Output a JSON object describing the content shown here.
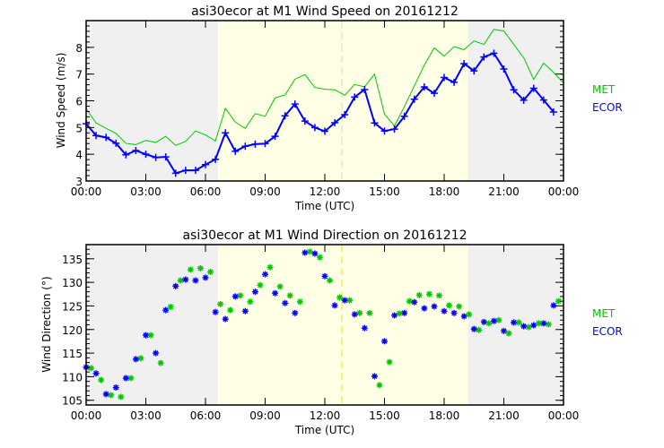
{
  "colors": {
    "met": "#00c800",
    "ecor": "#0000ff",
    "night": "#f0f0f0",
    "day": "#ffffe6"
  },
  "chart_data": [
    {
      "type": "line",
      "title": "asi30ecor at M1 Wind Speed on 20161212",
      "xlabel": "Time (UTC)",
      "ylabel": "Wind Speed (m/s)",
      "xlim": [
        0,
        24
      ],
      "ylim": [
        3,
        9
      ],
      "xticks": [
        "00:00",
        "03:00",
        "06:00",
        "09:00",
        "12:00",
        "15:00",
        "18:00",
        "21:00",
        "00:00"
      ],
      "yticks": [
        3,
        4,
        5,
        6,
        7,
        8
      ],
      "shading": {
        "night_end": 6.63,
        "day_end": 19.2,
        "marker_line": 12.86
      },
      "legend": [
        "MET",
        "ECOR"
      ],
      "legend_position": "right",
      "series": [
        {
          "name": "MET",
          "x_start": 0,
          "x_step": 0.5,
          "values": [
            5.7,
            5.17,
            4.97,
            4.78,
            4.41,
            4.36,
            4.52,
            4.44,
            4.67,
            4.33,
            4.48,
            4.87,
            4.72,
            4.5,
            5.72,
            5.2,
            4.97,
            5.52,
            5.42,
            6.11,
            6.22,
            6.81,
            6.98,
            6.5,
            6.43,
            6.41,
            6.21,
            6.61,
            6.52,
            7.0,
            5.5,
            5.06,
            5.78,
            6.56,
            7.33,
            7.98,
            7.67,
            8.03,
            7.91,
            8.24,
            8.11,
            8.67,
            8.61,
            8.11,
            7.61,
            6.8,
            7.41,
            7.06,
            6.67
          ]
        },
        {
          "name": "ECOR",
          "x_start": 0,
          "x_step": 0.5,
          "values": [
            5.14,
            4.7,
            4.63,
            4.41,
            3.98,
            4.14,
            4.0,
            3.88,
            3.9,
            3.29,
            3.4,
            3.4,
            3.61,
            3.81,
            4.8,
            4.11,
            4.3,
            4.38,
            4.4,
            4.67,
            5.44,
            5.88,
            5.24,
            5.0,
            4.86,
            5.18,
            5.48,
            6.14,
            6.42,
            5.17,
            4.87,
            4.94,
            5.42,
            6.06,
            6.52,
            6.28,
            6.87,
            6.69,
            7.39,
            7.12,
            7.64,
            7.78,
            7.19,
            6.41,
            6.02,
            6.47,
            6.03,
            5.58
          ]
        }
      ]
    },
    {
      "type": "scatter",
      "title": "asi30ecor at M1 Wind Direction on 20161212",
      "xlabel": "Time (UTC)",
      "ylabel": "Wind Direction (°)",
      "xlim": [
        0,
        24
      ],
      "ylim": [
        104,
        138
      ],
      "xticks": [
        "00:00",
        "03:00",
        "06:00",
        "09:00",
        "12:00",
        "15:00",
        "18:00",
        "21:00",
        "00:00"
      ],
      "yticks": [
        105,
        110,
        115,
        120,
        125,
        130,
        135
      ],
      "shading": {
        "night_end": 6.63,
        "day_end": 19.2,
        "marker_line": 12.86
      },
      "legend": [
        "MET",
        "ECOR"
      ],
      "legend_position": "right",
      "series": [
        {
          "name": "MET",
          "x_start": 0.25,
          "x_step": 0.5,
          "values": [
            111.8,
            109.3,
            106.1,
            105.7,
            109.7,
            113.9,
            118.8,
            112.9,
            124.8,
            130.4,
            132.7,
            133.0,
            132.2,
            125.4,
            124.1,
            127.2,
            125.9,
            129.4,
            133.2,
            129.1,
            127.2,
            125.9,
            136.5,
            135.3,
            130.4,
            126.8,
            126.2,
            123.5,
            123.5,
            108.2,
            113.1,
            123.4,
            126.0,
            127.3,
            127.5,
            127.2,
            125.1,
            124.9,
            123.2,
            119.9,
            121.3,
            122.0,
            119.2,
            121.5,
            120.5,
            121.3,
            121.1,
            126.0
          ]
        },
        {
          "name": "ECOR",
          "x_start": 0,
          "x_step": 0.5,
          "values": [
            112.0,
            110.7,
            106.3,
            107.7,
            109.7,
            113.7,
            118.8,
            115.0,
            124.1,
            129.2,
            130.6,
            130.4,
            131.0,
            123.7,
            122.2,
            127.0,
            123.9,
            128.0,
            131.7,
            127.7,
            125.6,
            123.5,
            136.3,
            136.1,
            131.3,
            125.1,
            126.2,
            123.2,
            120.3,
            110.1,
            117.5,
            123.0,
            123.5,
            125.8,
            124.5,
            124.9,
            123.9,
            123.5,
            122.8,
            120.1,
            121.6,
            121.8,
            119.7,
            121.5,
            120.7,
            120.9,
            121.3,
            125.1
          ]
        }
      ]
    }
  ]
}
